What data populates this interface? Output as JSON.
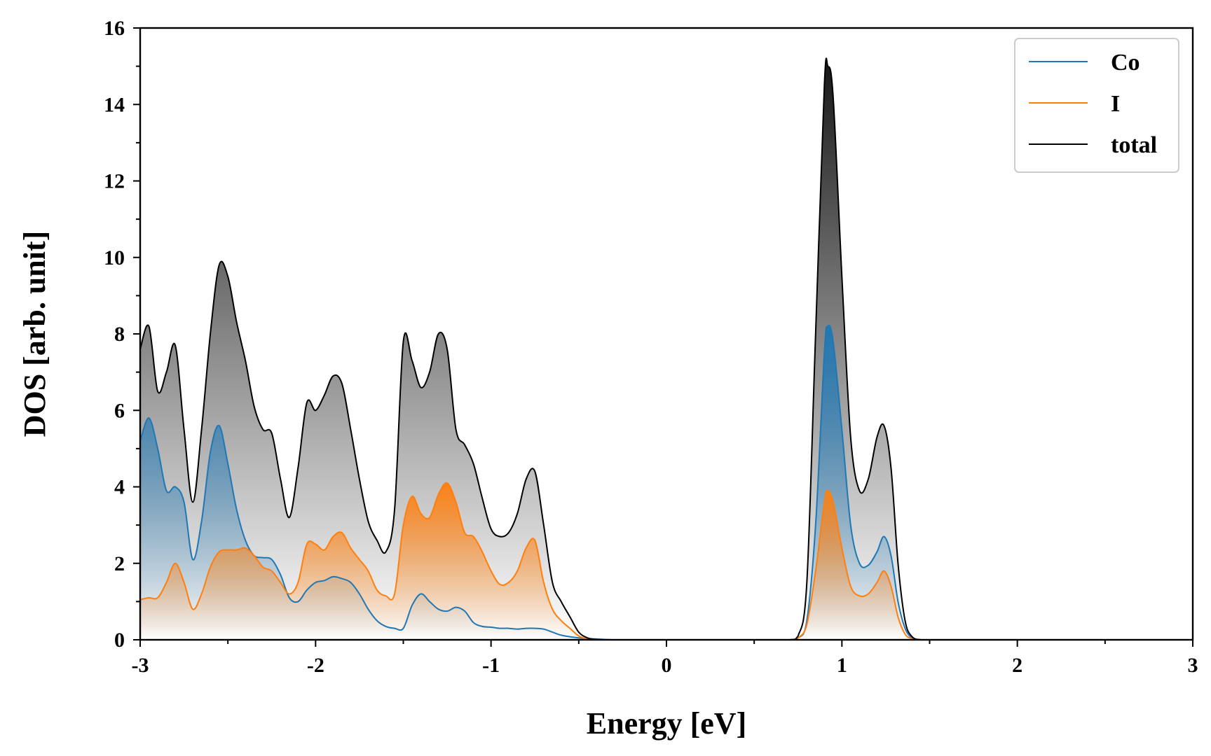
{
  "chart_data": {
    "type": "area",
    "xlabel": "Energy [eV]",
    "ylabel": "DOS [arb. unit]",
    "xlim": [
      -3,
      3
    ],
    "ylim": [
      0,
      16
    ],
    "xticks": [
      -3,
      -2,
      -1,
      0,
      1,
      2,
      3
    ],
    "xtick_labels": [
      "-3",
      "-2",
      "-1",
      "0",
      "1",
      "2",
      "3"
    ],
    "yticks": [
      0,
      2,
      4,
      6,
      8,
      10,
      12,
      14,
      16
    ],
    "ytick_labels": [
      "0",
      "2",
      "4",
      "6",
      "8",
      "10",
      "12",
      "14",
      "16"
    ],
    "grid": false,
    "legend_position": "top-right",
    "series": [
      {
        "name": "Co",
        "color": "#1f77b4",
        "x": [
          -3.0,
          -2.95,
          -2.9,
          -2.85,
          -2.8,
          -2.75,
          -2.7,
          -2.65,
          -2.6,
          -2.55,
          -2.5,
          -2.45,
          -2.4,
          -2.35,
          -2.3,
          -2.25,
          -2.2,
          -2.15,
          -2.1,
          -2.05,
          -2.0,
          -1.95,
          -1.9,
          -1.85,
          -1.8,
          -1.75,
          -1.7,
          -1.65,
          -1.6,
          -1.55,
          -1.5,
          -1.45,
          -1.4,
          -1.35,
          -1.3,
          -1.25,
          -1.2,
          -1.15,
          -1.1,
          -1.05,
          -1.0,
          -0.95,
          -0.9,
          -0.85,
          -0.8,
          -0.75,
          -0.7,
          -0.65,
          -0.6,
          -0.55,
          -0.5,
          -0.45,
          -0.4,
          -0.35,
          -0.3,
          -0.25,
          -0.2,
          -0.15,
          -0.1,
          0.0,
          0.5,
          0.7,
          0.75,
          0.8,
          0.85,
          0.9,
          0.92,
          0.95,
          1.0,
          1.05,
          1.1,
          1.15,
          1.2,
          1.24,
          1.28,
          1.32,
          1.36,
          1.4,
          1.45,
          1.5,
          2.0,
          3.0
        ],
        "values": [
          5.2,
          5.8,
          5.0,
          3.9,
          4.0,
          3.6,
          2.1,
          3.1,
          4.9,
          5.6,
          4.6,
          3.4,
          2.6,
          2.2,
          2.15,
          2.1,
          1.7,
          1.1,
          1.0,
          1.3,
          1.5,
          1.55,
          1.65,
          1.6,
          1.5,
          1.2,
          0.8,
          0.5,
          0.35,
          0.3,
          0.3,
          0.9,
          1.2,
          1.0,
          0.8,
          0.75,
          0.85,
          0.75,
          0.45,
          0.35,
          0.33,
          0.3,
          0.3,
          0.28,
          0.3,
          0.3,
          0.28,
          0.2,
          0.12,
          0.08,
          0.05,
          0.03,
          0.02,
          0.01,
          0.0,
          0.0,
          0.0,
          0.0,
          0.0,
          0.0,
          0.0,
          0.0,
          0.05,
          0.5,
          3.0,
          7.5,
          8.2,
          7.8,
          5.5,
          3.0,
          2.0,
          1.95,
          2.3,
          2.7,
          2.2,
          1.0,
          0.3,
          0.05,
          0.0,
          0.0,
          0.0,
          0.0
        ]
      },
      {
        "name": "I",
        "color": "#ff7f0e",
        "x": [
          -3.0,
          -2.95,
          -2.9,
          -2.85,
          -2.8,
          -2.75,
          -2.7,
          -2.65,
          -2.6,
          -2.55,
          -2.5,
          -2.45,
          -2.4,
          -2.35,
          -2.3,
          -2.25,
          -2.2,
          -2.15,
          -2.1,
          -2.05,
          -2.0,
          -1.95,
          -1.9,
          -1.85,
          -1.8,
          -1.75,
          -1.7,
          -1.65,
          -1.6,
          -1.55,
          -1.5,
          -1.45,
          -1.4,
          -1.35,
          -1.3,
          -1.25,
          -1.2,
          -1.15,
          -1.1,
          -1.05,
          -1.0,
          -0.95,
          -0.9,
          -0.85,
          -0.8,
          -0.75,
          -0.7,
          -0.65,
          -0.6,
          -0.55,
          -0.5,
          -0.45,
          -0.4,
          -0.35,
          -0.3,
          -0.25,
          -0.2,
          -0.15,
          -0.1,
          0.0,
          0.5,
          0.7,
          0.75,
          0.8,
          0.85,
          0.9,
          0.92,
          0.95,
          1.0,
          1.05,
          1.1,
          1.15,
          1.2,
          1.24,
          1.28,
          1.32,
          1.36,
          1.4,
          1.45,
          1.5,
          2.0,
          3.0
        ],
        "values": [
          1.05,
          1.1,
          1.1,
          1.5,
          2.0,
          1.5,
          0.8,
          1.2,
          1.9,
          2.3,
          2.35,
          2.35,
          2.4,
          2.2,
          1.9,
          1.8,
          1.5,
          1.2,
          1.5,
          2.5,
          2.5,
          2.35,
          2.7,
          2.8,
          2.4,
          2.1,
          1.8,
          1.3,
          1.15,
          1.2,
          3.0,
          3.75,
          3.3,
          3.2,
          3.8,
          4.1,
          3.6,
          2.8,
          2.7,
          2.3,
          1.8,
          1.45,
          1.5,
          1.8,
          2.4,
          2.6,
          1.5,
          0.8,
          0.5,
          0.3,
          0.1,
          0.02,
          0.0,
          0.0,
          0.0,
          0.0,
          0.0,
          0.0,
          0.0,
          0.0,
          0.0,
          0.0,
          0.05,
          0.4,
          1.8,
          3.6,
          3.9,
          3.6,
          2.4,
          1.4,
          1.15,
          1.2,
          1.5,
          1.8,
          1.4,
          0.6,
          0.15,
          0.03,
          0.0,
          0.0,
          0.0,
          0.0
        ]
      },
      {
        "name": "total",
        "color": "#000000",
        "x": [
          -3.0,
          -2.95,
          -2.9,
          -2.85,
          -2.8,
          -2.75,
          -2.7,
          -2.65,
          -2.6,
          -2.55,
          -2.5,
          -2.45,
          -2.4,
          -2.35,
          -2.3,
          -2.25,
          -2.2,
          -2.15,
          -2.1,
          -2.05,
          -2.0,
          -1.95,
          -1.9,
          -1.85,
          -1.8,
          -1.75,
          -1.7,
          -1.65,
          -1.6,
          -1.55,
          -1.5,
          -1.45,
          -1.4,
          -1.35,
          -1.3,
          -1.25,
          -1.2,
          -1.15,
          -1.1,
          -1.05,
          -1.0,
          -0.95,
          -0.9,
          -0.85,
          -0.8,
          -0.75,
          -0.7,
          -0.65,
          -0.6,
          -0.55,
          -0.5,
          -0.45,
          -0.4,
          -0.35,
          -0.3,
          -0.25,
          -0.2,
          -0.15,
          -0.1,
          0.0,
          0.5,
          0.7,
          0.75,
          0.8,
          0.85,
          0.9,
          0.92,
          0.95,
          1.0,
          1.05,
          1.1,
          1.15,
          1.2,
          1.24,
          1.28,
          1.32,
          1.36,
          1.4,
          1.45,
          1.5,
          2.0,
          3.0
        ],
        "values": [
          7.6,
          8.2,
          6.5,
          7.0,
          7.7,
          5.5,
          3.6,
          5.5,
          8.0,
          9.8,
          9.5,
          8.3,
          7.3,
          6.1,
          5.5,
          5.4,
          4.2,
          3.2,
          4.5,
          6.2,
          6.0,
          6.4,
          6.9,
          6.7,
          5.5,
          4.2,
          3.1,
          2.6,
          2.3,
          3.4,
          7.8,
          7.3,
          6.6,
          7.0,
          8.0,
          7.6,
          5.5,
          5.1,
          4.6,
          3.7,
          2.9,
          2.7,
          2.8,
          3.3,
          4.2,
          4.4,
          3.0,
          1.5,
          1.0,
          0.6,
          0.2,
          0.05,
          0.01,
          0.0,
          0.0,
          0.0,
          0.0,
          0.0,
          0.0,
          0.0,
          0.0,
          0.0,
          0.1,
          1.5,
          8.0,
          14.5,
          15.0,
          14.2,
          9.5,
          5.3,
          3.9,
          4.2,
          5.3,
          5.6,
          4.5,
          2.0,
          0.5,
          0.08,
          0.0,
          0.0,
          0.0,
          0.0
        ]
      }
    ]
  }
}
